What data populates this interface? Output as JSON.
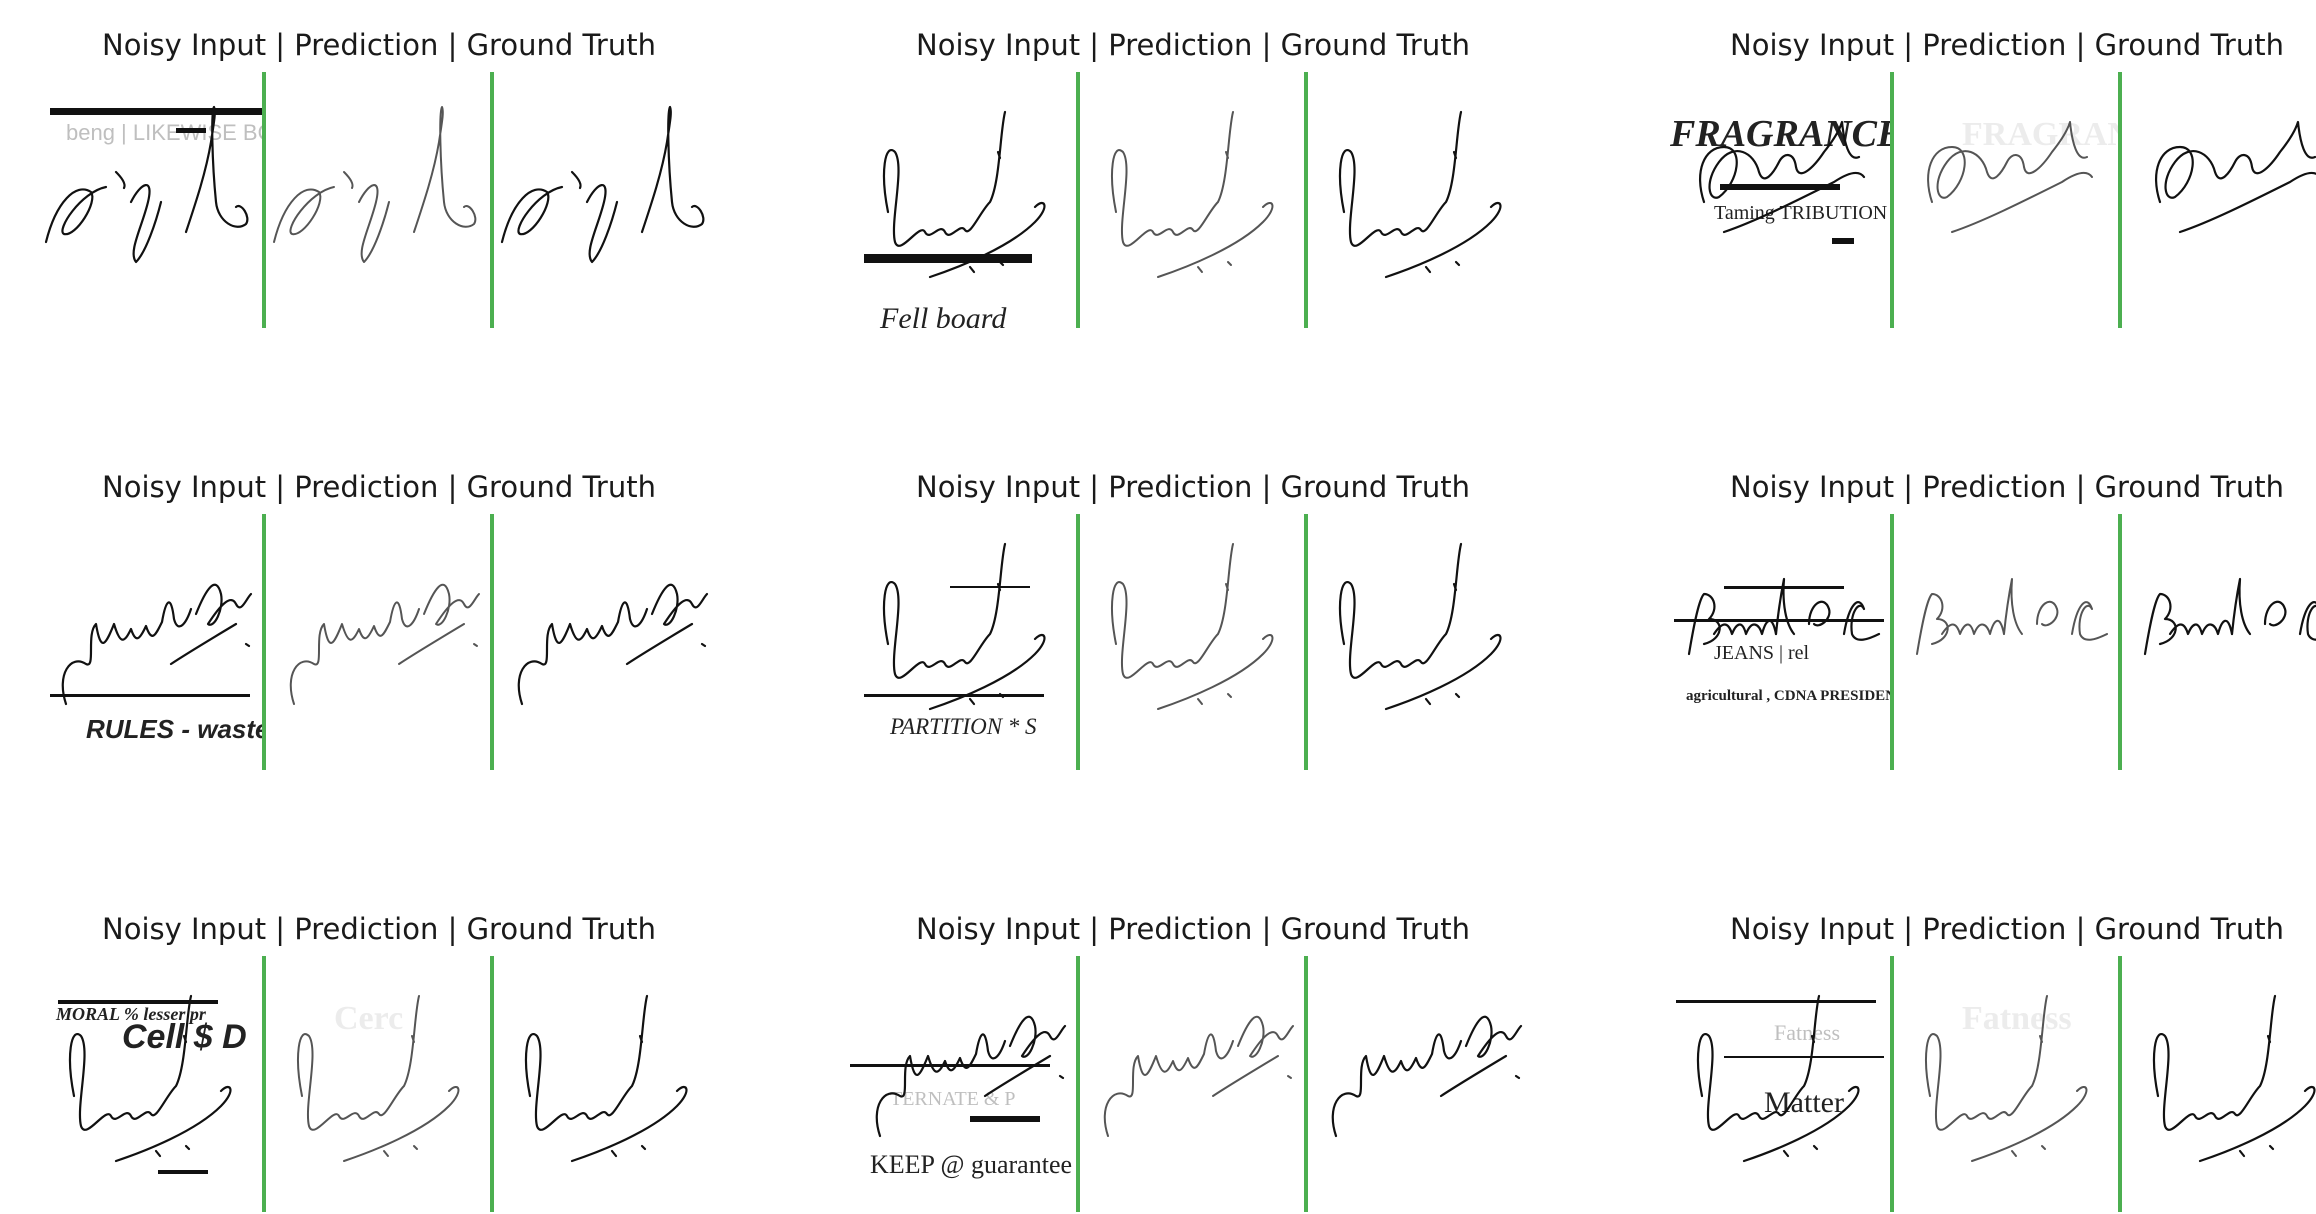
{
  "figure": {
    "panel_title": "Noisy Input | Prediction | Ground Truth",
    "separator_color": "#4caf50",
    "panels": [
      {
        "signature": "loop",
        "noise_texts": [
          "beng | LIKEWISE BOARD"
        ],
        "prediction_residue": []
      },
      {
        "signature": "sumit",
        "noise_texts": [
          "Fell board"
        ],
        "prediction_residue": []
      },
      {
        "signature": "dhah",
        "noise_texts": [
          "FRAGRANCE F",
          "Taming   TRIBUTION"
        ],
        "prediction_residue": [
          "FRAGRANCE"
        ]
      },
      {
        "signature": "meenakshi",
        "noise_texts": [
          "RULES - waste"
        ],
        "prediction_residue": []
      },
      {
        "signature": "sumit",
        "noise_texts": [
          "PARTITION * S"
        ],
        "prediction_residue": []
      },
      {
        "signature": "brand",
        "noise_texts": [
          "JEANS | rel",
          "agricultural , CDNA PRESIDENT"
        ],
        "prediction_residue": []
      },
      {
        "signature": "sumit",
        "noise_texts": [
          "MORAL % lesser pr",
          "Cell $ D"
        ],
        "prediction_residue": [
          "Cerc"
        ]
      },
      {
        "signature": "meenakshi",
        "noise_texts": [
          "TERNATE & P",
          "KEEP @ guarantee"
        ],
        "prediction_residue": []
      },
      {
        "signature": "sumit",
        "noise_texts": [
          "Matter",
          "Fatness"
        ],
        "prediction_residue": [
          "Fatness"
        ]
      }
    ]
  }
}
